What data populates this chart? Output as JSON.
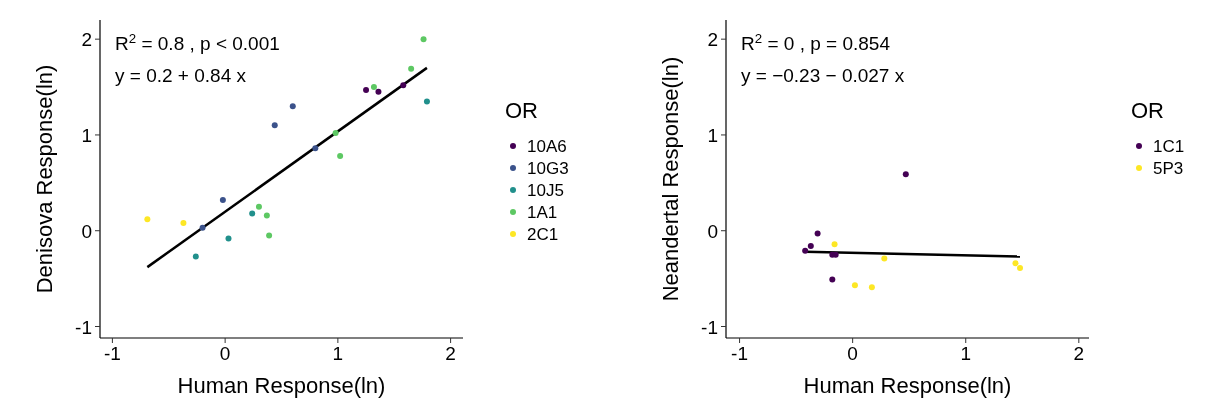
{
  "chart_data": [
    {
      "type": "scatter",
      "xlabel": "Human Response(ln)",
      "ylabel": "Denisova Response(ln)",
      "legend_title": "OR",
      "legend": "right",
      "marker": "circle",
      "grid": false,
      "xlim": [
        -1.11,
        2.11
      ],
      "ylim": [
        -1.12,
        2.2
      ],
      "xticks": [
        {
          "value": -1,
          "label": "-1"
        },
        0,
        1,
        2
      ],
      "yticks": [
        {
          "value": -1,
          "label": "-1"
        },
        0,
        1,
        2
      ],
      "annotations": [
        "R$^{2}$ = 0.8 , p < 0.001",
        "y = 0.2 + 0.84 x"
      ],
      "series": [
        {
          "name": "10A6",
          "color": "#440154",
          "x": [
            1.25,
            1.36,
            1.58
          ],
          "values": [
            1.47,
            1.45,
            1.52
          ]
        },
        {
          "name": "10G3",
          "color": "#3b528b",
          "x": [
            -0.02,
            -0.2,
            0.44,
            0.6,
            0.8
          ],
          "values": [
            0.32,
            0.03,
            1.1,
            1.3,
            0.86
          ]
        },
        {
          "name": "10J5",
          "color": "#21908c",
          "x": [
            -0.26,
            0.03,
            0.24,
            1.79
          ],
          "values": [
            -0.27,
            -0.08,
            0.18,
            1.35
          ]
        },
        {
          "name": "1A1",
          "color": "#5dc863",
          "x": [
            0.3,
            0.37,
            0.39,
            0.98,
            1.02,
            1.32,
            1.65,
            1.76
          ],
          "values": [
            0.25,
            0.16,
            -0.05,
            1.02,
            0.78,
            1.5,
            1.69,
            2.0
          ]
        },
        {
          "name": "2C1",
          "color": "#fde725",
          "x": [
            -0.69,
            -0.37
          ],
          "values": [
            0.12,
            0.08
          ]
        },
        {
          "type": "line",
          "marker": "none",
          "color": "#000000",
          "x": [
            -0.69,
            1.79
          ],
          "values": [
            -0.38,
            1.7
          ]
        }
      ]
    },
    {
      "type": "scatter",
      "xlabel": "Human Response(ln)",
      "ylabel": "Neandertal Response(ln)",
      "legend_title": "OR",
      "legend": "right",
      "marker": "circle",
      "grid": false,
      "xlim": [
        -1.12,
        2.09
      ],
      "ylim": [
        -1.12,
        2.2
      ],
      "xticks": [
        {
          "value": -1,
          "label": "-1"
        },
        0,
        1,
        2
      ],
      "yticks": [
        {
          "value": -1,
          "label": "-1"
        },
        0,
        1,
        2
      ],
      "annotations": [
        "R$^{2}$ = 0 , p = 0.854",
        "y = −0.23 − 0.027 x"
      ],
      "series": [
        {
          "name": "1C1",
          "color": "#440154",
          "x": [
            0.47,
            -0.31,
            -0.37,
            -0.42,
            -0.18,
            -0.15,
            -0.18
          ],
          "values": [
            0.59,
            -0.03,
            -0.16,
            -0.21,
            -0.25,
            -0.25,
            -0.51
          ]
        },
        {
          "name": "5P3",
          "color": "#fde725",
          "x": [
            -0.16,
            0.28,
            0.02,
            0.17,
            1.44,
            1.48
          ],
          "values": [
            -0.14,
            -0.29,
            -0.57,
            -0.59,
            -0.34,
            -0.39
          ]
        },
        {
          "type": "line",
          "marker": "none",
          "color": "#000000",
          "x": [
            -0.42,
            1.48
          ],
          "values": [
            -0.22,
            -0.27
          ]
        }
      ]
    }
  ]
}
